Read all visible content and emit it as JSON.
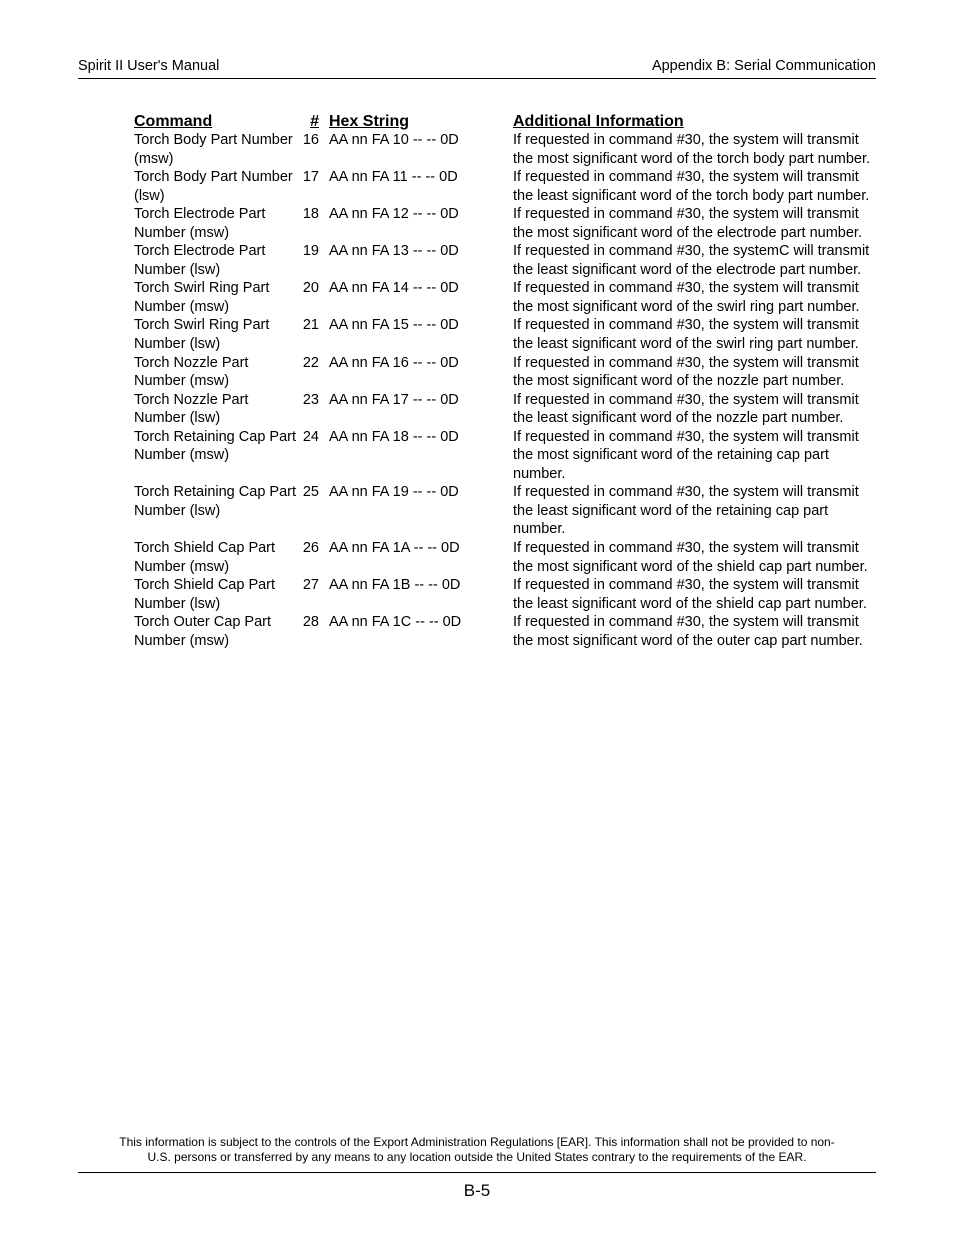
{
  "header": {
    "left": "Spirit II User's Manual",
    "right": "Appendix B: Serial Communication"
  },
  "columns": {
    "command": "Command",
    "number": "#",
    "hex": "Hex String",
    "info": "Additional Information"
  },
  "rows": [
    {
      "command": "Torch Body Part Number (msw)",
      "num": "16",
      "hex": "AA nn FA 10 -- -- 0D",
      "info": "If requested in command #30, the system will transmit the most significant word of the torch body part number."
    },
    {
      "command": "Torch Body Part Number (lsw)",
      "num": "17",
      "hex": "AA nn FA 11 -- -- 0D",
      "info": "If requested in command #30, the system will transmit the least significant word of the torch body part number."
    },
    {
      "command": "Torch Electrode Part Number (msw)",
      "num": "18",
      "hex": "AA nn FA 12 -- -- 0D",
      "info": "If requested in command #30, the system will transmit the most significant word of the electrode part number."
    },
    {
      "command": "Torch Electrode Part Number (lsw)",
      "num": "19",
      "hex": "AA nn FA 13 -- -- 0D",
      "info": "If requested in command #30, the systemC will transmit the least significant word of the electrode part number."
    },
    {
      "command": "Torch Swirl Ring Part Number (msw)",
      "num": "20",
      "hex": "AA nn FA 14 -- -- 0D",
      "info": "If requested in command #30, the system will transmit the most significant word of the swirl ring part number."
    },
    {
      "command": "Torch Swirl Ring Part Number (lsw)",
      "num": "21",
      "hex": "AA nn FA 15 -- -- 0D",
      "info": "If requested in command #30, the system will transmit the least significant word of the swirl ring part number."
    },
    {
      "command": "Torch Nozzle Part Number (msw)",
      "num": "22",
      "hex": "AA nn FA 16 -- -- 0D",
      "info": "If requested in command #30, the system will transmit the most significant word of the nozzle part number."
    },
    {
      "command": "Torch Nozzle Part Number (lsw)",
      "num": "23",
      "hex": "AA nn FA 17 -- -- 0D",
      "info": "If requested in command #30, the system will transmit the least significant word of the nozzle part number."
    },
    {
      "command": "Torch Retaining Cap Part Number (msw)",
      "num": "24",
      "hex": "AA nn FA 18 -- -- 0D",
      "info": "If requested in command #30, the system will transmit the most significant word of the retaining cap part number."
    },
    {
      "command": "Torch Retaining Cap Part Number (lsw)",
      "num": "25",
      "hex": "AA nn FA 19 -- -- 0D",
      "info": "If requested in command #30, the system will transmit the least significant word of the retaining cap part number."
    },
    {
      "command": "Torch Shield Cap Part Number (msw)",
      "num": "26",
      "hex": "AA nn FA 1A -- -- 0D",
      "info": "If requested in command #30, the system will transmit the most significant word of the shield cap part number."
    },
    {
      "command": "Torch Shield Cap Part Number (lsw)",
      "num": "27",
      "hex": "AA nn FA 1B -- -- 0D",
      "info": "If requested in command #30, the system will transmit the least significant word of the shield cap part number."
    },
    {
      "command": "Torch Outer Cap Part Number (msw)",
      "num": "28",
      "hex": "AA nn FA 1C -- -- 0D",
      "info": "If requested in command #30, the system will transmit the most significant word of the outer cap part number."
    }
  ],
  "footer": {
    "disclaimer": "This information is subject to the controls of the Export Administration Regulations [EAR].  This information shall not be provided to non-U.S. persons or transferred by any means to any location outside the United States contrary to the requirements of the EAR.",
    "page": "B-5"
  },
  "style": {
    "text_color": "#000000",
    "background_color": "#ffffff",
    "rule_color": "#000000",
    "body_fontsize": 14.5,
    "header_fontsize": 14.5,
    "colheader_fontsize": 16,
    "disclaimer_fontsize": 12,
    "pagenum_fontsize": 17
  }
}
